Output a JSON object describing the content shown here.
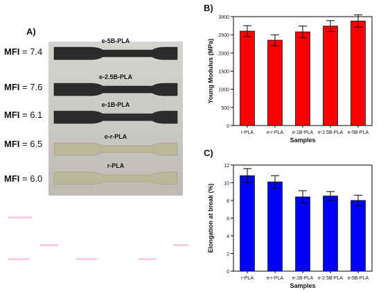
{
  "panel_a": {
    "label": "A)",
    "mfi_label": "MFI",
    "mfi": [
      {
        "name": "e-5B-PLA",
        "value": "= 7.4"
      },
      {
        "name": "e-2.5B-PLA",
        "value": "= 7.6"
      },
      {
        "name": "e-1B-PLA",
        "value": "= 6.1"
      },
      {
        "name": "e-r-PLA",
        "value": "= 6.5"
      },
      {
        "name": "r-PLA",
        "value": "= 6.0"
      }
    ]
  },
  "colors": {
    "red": "#ff0000",
    "blue": "#0000ff",
    "dark_specimen": "#2b2d2c",
    "light_specimen": "#b9b89a"
  },
  "chart_data": [
    {
      "panel": "B)",
      "type": "bar",
      "xlabel": "Samples",
      "ylabel": "Young Modulus (MPa)",
      "categories": [
        "r-PLA",
        "e-r-PLA",
        "e-1B-PLA",
        "e-2.5B-PLA",
        "e-5B-PLA"
      ],
      "values": [
        2600,
        2350,
        2580,
        2740,
        2880
      ],
      "errors": [
        150,
        150,
        160,
        150,
        170
      ],
      "ylim": [
        0,
        3000
      ],
      "yticks": [
        0,
        500,
        1000,
        1500,
        2000,
        2500,
        3000
      ],
      "color": "#ff0000"
    },
    {
      "panel": "C)",
      "type": "bar",
      "xlabel": "Samples",
      "ylabel": "Elongation at break (%)",
      "categories": [
        "r-PLA",
        "e-r-PLA",
        "e-1B-PLA",
        "e-2.5B-PLA",
        "e-5B-PLA"
      ],
      "values": [
        10.8,
        10.1,
        8.4,
        8.5,
        8.0
      ],
      "errors": [
        0.8,
        0.7,
        0.7,
        0.5,
        0.6
      ],
      "ylim": [
        0,
        12
      ],
      "yticks": [
        0,
        2,
        4,
        6,
        8,
        10,
        12
      ],
      "color": "#0000ff"
    }
  ]
}
